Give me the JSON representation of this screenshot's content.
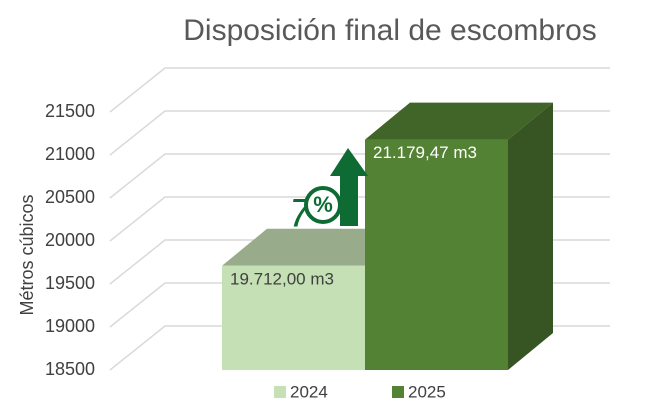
{
  "chart_data": {
    "type": "bar3d",
    "title": "Disposición final de escombros",
    "y_label": "Métros cúbicos",
    "categories": [
      null
    ],
    "series": [
      {
        "name": "2024",
        "color": "#c5e0b4",
        "values": [
          19712
        ],
        "value_labels": [
          "19.712,00 m3"
        ]
      },
      {
        "name": "2025",
        "color": "#548235",
        "values": [
          21179.47
        ],
        "value_labels": [
          "21.179,47 m3"
        ]
      }
    ],
    "ylim": [
      18500,
      21500
    ],
    "yticks": [
      18500,
      19000,
      19500,
      20000,
      20500,
      21000,
      21500
    ],
    "grid": true,
    "annotation": {
      "number": "7",
      "symbol": "%"
    },
    "legend": "bottom"
  }
}
